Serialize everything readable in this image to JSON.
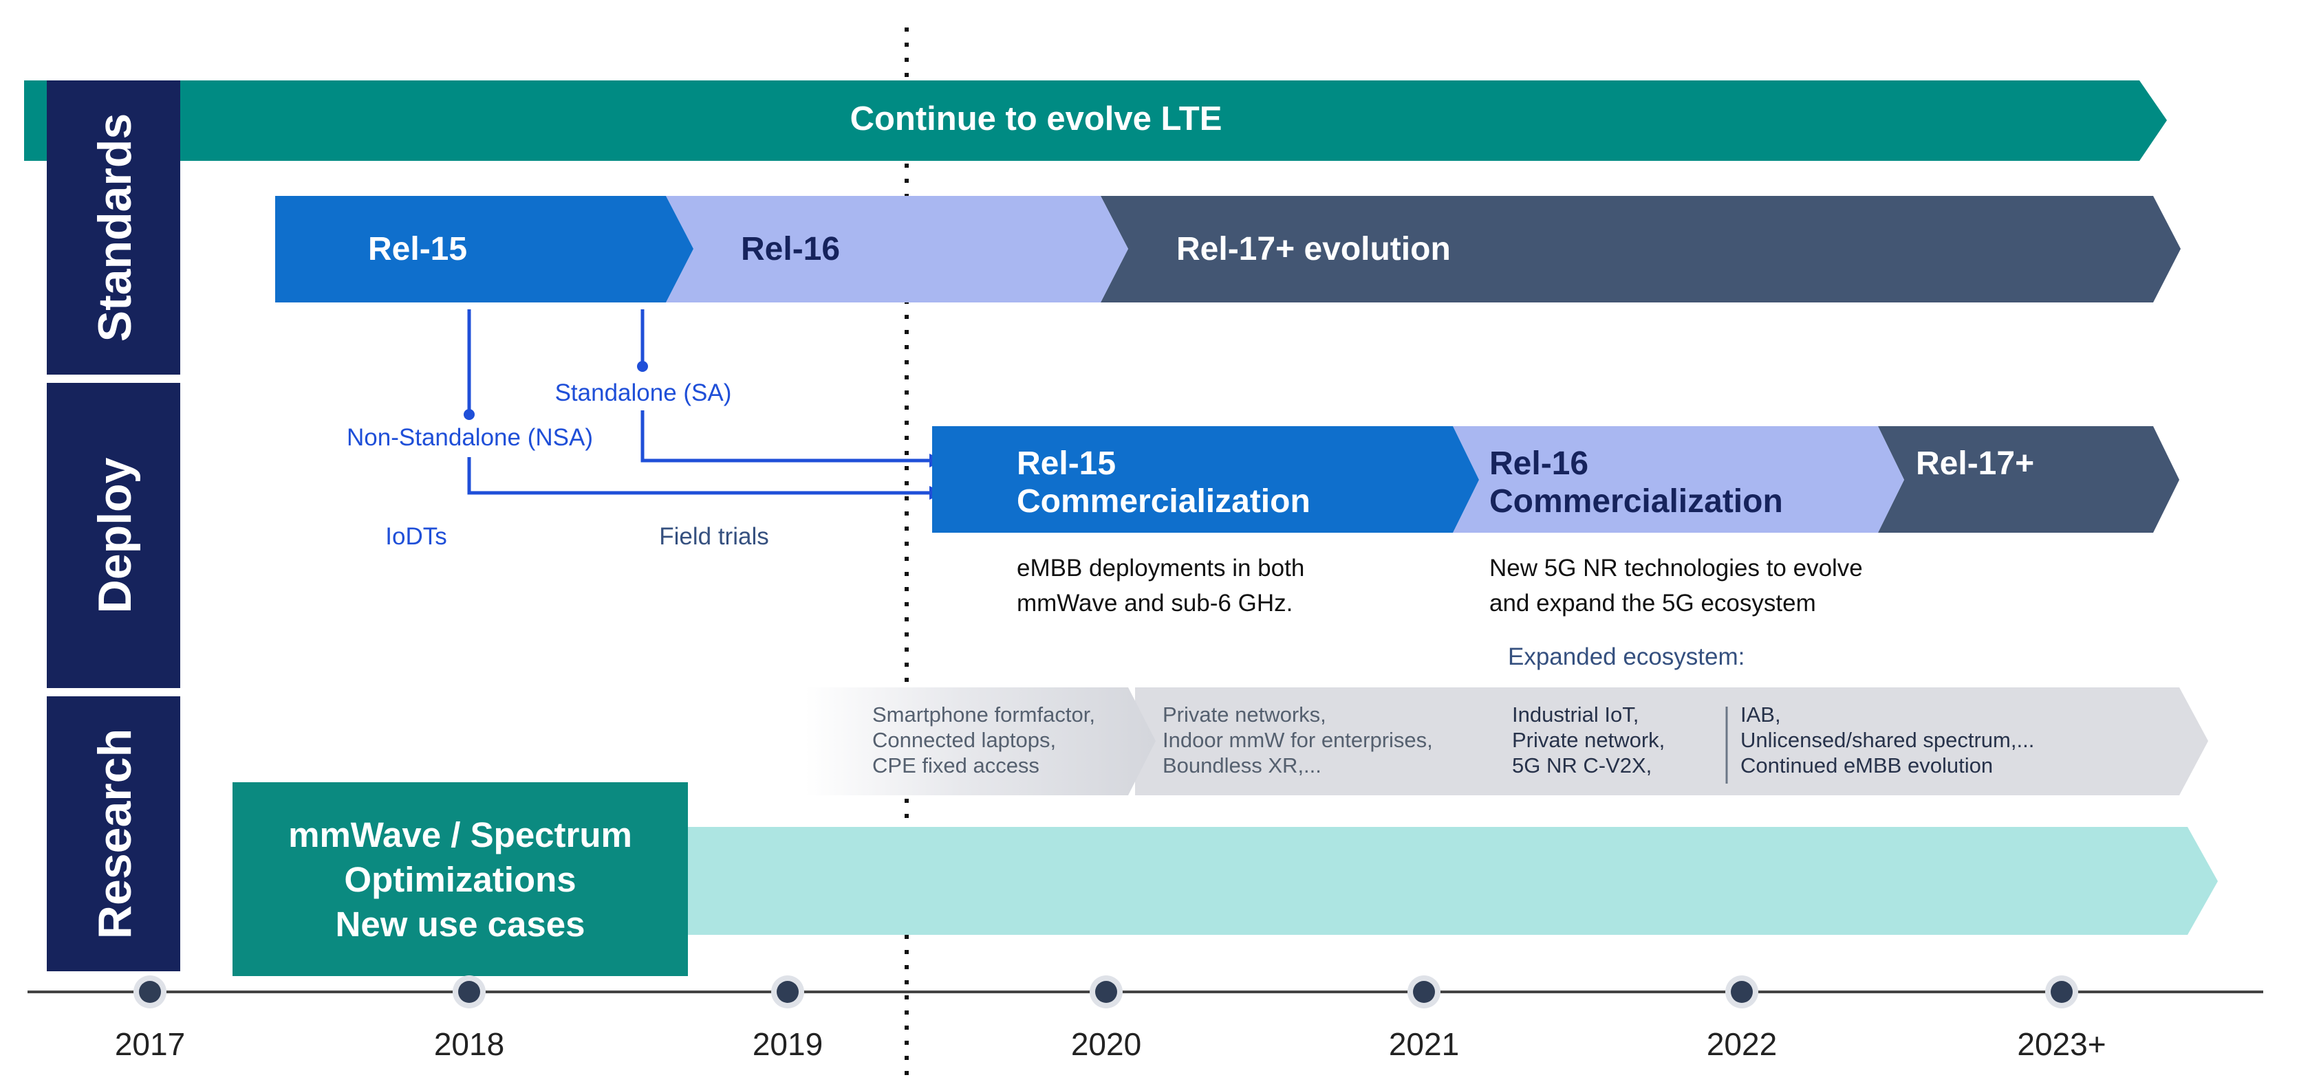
{
  "side_labels": [
    "Standards",
    "Deploy",
    "Research"
  ],
  "standards": {
    "lte_bar": "Continue to evolve LTE",
    "releases": [
      "Rel-15",
      "Rel-16",
      "Rel-17+ evolution"
    ],
    "branches": [
      "Non-Standalone (NSA)",
      "Standalone (SA)"
    ]
  },
  "deploy": {
    "phases": [
      "IoDTs",
      "Field trials"
    ],
    "commercial": {
      "rel15": [
        "Rel-15",
        "Commercialization"
      ],
      "rel16": [
        "Rel-16",
        "Commercialization"
      ],
      "rel17": "Rel-17+"
    },
    "notes": {
      "rel15": [
        "eMBB deployments in both",
        "mmWave and sub-6 GHz."
      ],
      "rel16": [
        "New 5G NR technologies to evolve",
        "and expand the 5G ecosystem"
      ]
    },
    "ecosystem_label": "Expanded ecosystem:"
  },
  "research": {
    "ecosystem_groups": [
      [
        "Smartphone formfactor,",
        "Connected laptops,",
        "CPE fixed access"
      ],
      [
        "Private networks,",
        "Indoor mmW for enterprises,",
        "Boundless XR,..."
      ],
      [
        "Industrial IoT,",
        "Private network,",
        "5G NR C-V2X,"
      ],
      [
        "IAB,",
        "Unlicensed/shared spectrum,...",
        "Continued eMBB evolution"
      ]
    ],
    "box": [
      "mmWave / Spectrum",
      "Optimizations",
      "New use cases"
    ]
  },
  "timeline": {
    "years": [
      "2017",
      "2018",
      "2019",
      "2020",
      "2021",
      "2022",
      "2023+"
    ]
  },
  "colors": {
    "navy": "#16235c",
    "teal": "#008b83",
    "teal_box": "#0b8a80",
    "teal_light": "#ade5e2",
    "blue": "#0f6fcc",
    "lavender": "#a9b7f1",
    "slate": "#435673",
    "link_blue": "#1f4fd8",
    "grey_arrow": "#dcdde2"
  }
}
